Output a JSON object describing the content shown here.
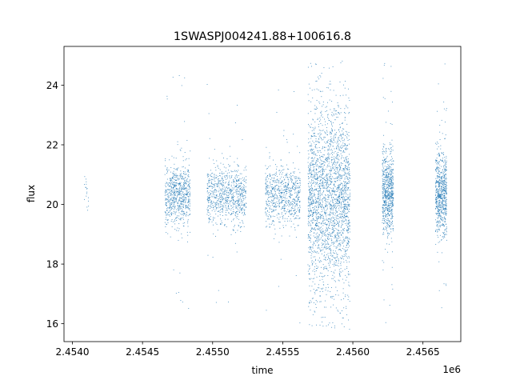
{
  "chart_data": {
    "type": "scatter",
    "title": "1SWASPJ004241.88+100616.8",
    "xlabel": "time",
    "ylabel": "flux",
    "x_offset_label": "1e6",
    "xlim": [
      2.45394,
      2.45677
    ],
    "ylim": [
      15.4,
      25.3
    ],
    "x_ticks": [
      2.454,
      2.4545,
      2.455,
      2.4555,
      2.456,
      2.4565
    ],
    "x_tick_labels": [
      "2.4540",
      "2.4545",
      "2.4550",
      "2.4555",
      "2.4560",
      "2.4565"
    ],
    "y_ticks": [
      16,
      18,
      20,
      22,
      24
    ],
    "y_tick_labels": [
      "16",
      "18",
      "20",
      "22",
      "24"
    ],
    "grid": false,
    "marker_color": "#1f77b4",
    "series": [
      {
        "clusters": [
          {
            "x_center": 2.4541,
            "x_width": 3e-05,
            "y_center": 20.4,
            "y_spread": 0.35,
            "y_min": 19.8,
            "y_max": 21.4,
            "n": 18
          },
          {
            "x_center": 2.45475,
            "x_width": 0.00018,
            "y_center": 20.3,
            "y_spread": 0.5,
            "y_min": 16.0,
            "y_max": 24.8,
            "n": 700
          },
          {
            "x_center": 2.4551,
            "x_width": 0.00028,
            "y_center": 20.3,
            "y_spread": 0.5,
            "y_min": 15.9,
            "y_max": 24.9,
            "n": 800
          },
          {
            "x_center": 2.4555,
            "x_width": 0.00025,
            "y_center": 20.3,
            "y_spread": 0.5,
            "y_min": 15.9,
            "y_max": 24.6,
            "n": 700
          },
          {
            "x_center": 2.45583,
            "x_width": 0.0003,
            "y_center": 20.2,
            "y_spread": 1.5,
            "y_min": 15.8,
            "y_max": 24.9,
            "n": 2400
          },
          {
            "x_center": 2.45625,
            "x_width": 8e-05,
            "y_center": 20.4,
            "y_spread": 0.7,
            "y_min": 16.0,
            "y_max": 24.9,
            "n": 700
          },
          {
            "x_center": 2.45663,
            "x_width": 8e-05,
            "y_center": 20.4,
            "y_spread": 0.7,
            "y_min": 16.0,
            "y_max": 24.9,
            "n": 700
          }
        ]
      }
    ]
  }
}
